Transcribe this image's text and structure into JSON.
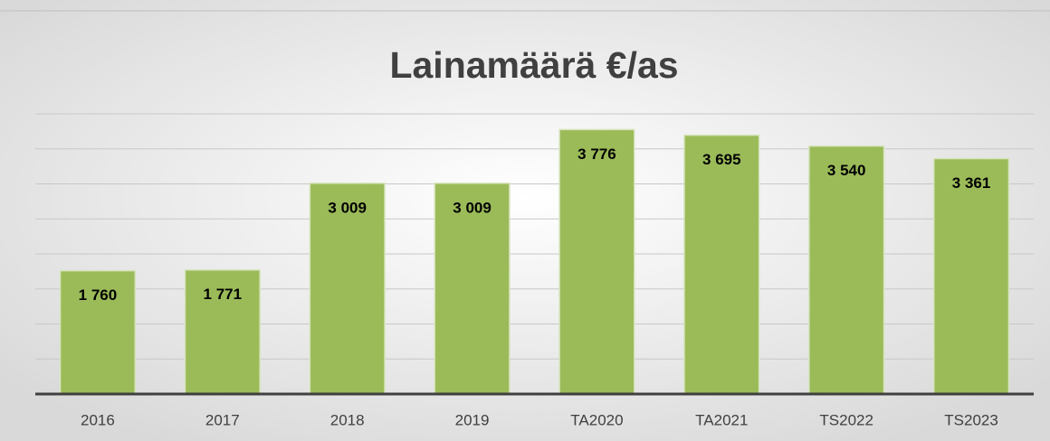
{
  "chart_data": {
    "type": "bar",
    "title": "Lainamäärä €/as",
    "categories": [
      "2016",
      "2017",
      "2018",
      "2019",
      "TA2020",
      "TA2021",
      "TS2022",
      "TS2023"
    ],
    "values": [
      1760,
      1771,
      3009,
      3009,
      3776,
      3695,
      3540,
      3361
    ],
    "value_labels": [
      "1 760",
      "1 771",
      "3 009",
      "3 009",
      "3 776",
      "3 695",
      "3 540",
      "3 361"
    ],
    "color": "#9bbb59",
    "ylim": [
      0,
      4000
    ],
    "yticks": [
      0,
      500,
      1000,
      1500,
      2000,
      2500,
      3000,
      3500,
      4000
    ],
    "grid": true
  }
}
